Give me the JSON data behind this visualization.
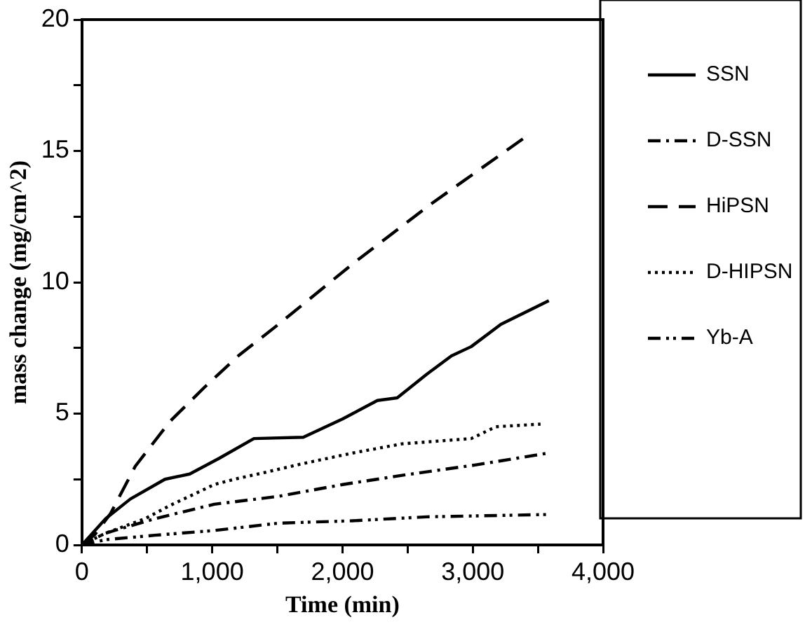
{
  "chart_data": {
    "type": "line",
    "xlabel": "Time (min)",
    "ylabel": "mass change (mg/cm^2)",
    "xlim": [
      0,
      4000
    ],
    "xticks": [
      0,
      {
        "value": 500,
        "label": null
      },
      {
        "value": 1000,
        "label": "1,000"
      },
      {
        "value": 1500,
        "label": null
      },
      {
        "value": 2000,
        "label": "2,000"
      },
      {
        "value": 2500,
        "label": null
      },
      {
        "value": 3000,
        "label": "3,000"
      },
      {
        "value": 3500,
        "label": null
      },
      {
        "value": 4000,
        "label": "4,000"
      }
    ],
    "ylim": [
      0,
      20
    ],
    "yticks": [
      0,
      {
        "value": 2.5,
        "label": null
      },
      5,
      {
        "value": 7.5,
        "label": null
      },
      10,
      {
        "value": 12.5,
        "label": null
      },
      15,
      {
        "value": 17.5,
        "label": null
      },
      20
    ],
    "grid": false,
    "legend": "right",
    "marker": "none",
    "series": [
      {
        "name": "SSN",
        "color": "#000000",
        "line_style": "solid",
        "x": [
          0,
          182,
          372,
          637,
          827,
          1054,
          1320,
          1699,
          2002,
          2268,
          2420,
          2647,
          2837,
          2988,
          3216,
          3584
        ],
        "values": [
          0,
          1.0,
          1.75,
          2.5,
          2.7,
          3.3,
          4.05,
          4.1,
          4.8,
          5.5,
          5.6,
          6.5,
          7.2,
          7.55,
          8.4,
          9.3
        ]
      },
      {
        "name": "D-SSN",
        "color": "#000000",
        "line_style": "dashdot",
        "x": [
          0,
          182,
          561,
          1016,
          1509,
          2002,
          2457,
          3026,
          3584
        ],
        "values": [
          0,
          0.45,
          1.0,
          1.55,
          1.85,
          2.3,
          2.65,
          3.05,
          3.5
        ]
      },
      {
        "name": "HiPSN",
        "color": "#000000",
        "line_style": "dashed",
        "x": [
          0,
          100,
          220,
          410,
          675,
          940,
          1200,
          1509,
          2078,
          2685,
          3424
        ],
        "values": [
          0,
          0.4,
          1.2,
          3.0,
          4.7,
          6.0,
          7.2,
          8.4,
          10.7,
          13.0,
          15.6
        ]
      },
      {
        "name": "D-HIPSN",
        "color": "#000000",
        "line_style": "dotted",
        "x": [
          0,
          182,
          485,
          675,
          1016,
          1168,
          1395,
          1699,
          2078,
          2457,
          2988,
          3178,
          3520
        ],
        "values": [
          0,
          0.45,
          1.0,
          1.5,
          2.3,
          2.5,
          2.75,
          3.1,
          3.5,
          3.85,
          4.05,
          4.5,
          4.6
        ]
      },
      {
        "name": "Yb-A",
        "color": "#000000",
        "line_style": "dashdotdot",
        "x": [
          0,
          182,
          561,
          1016,
          1509,
          2078,
          2647,
          3584
        ],
        "values": [
          0,
          0.2,
          0.37,
          0.55,
          0.83,
          0.92,
          1.07,
          1.16
        ]
      }
    ]
  }
}
